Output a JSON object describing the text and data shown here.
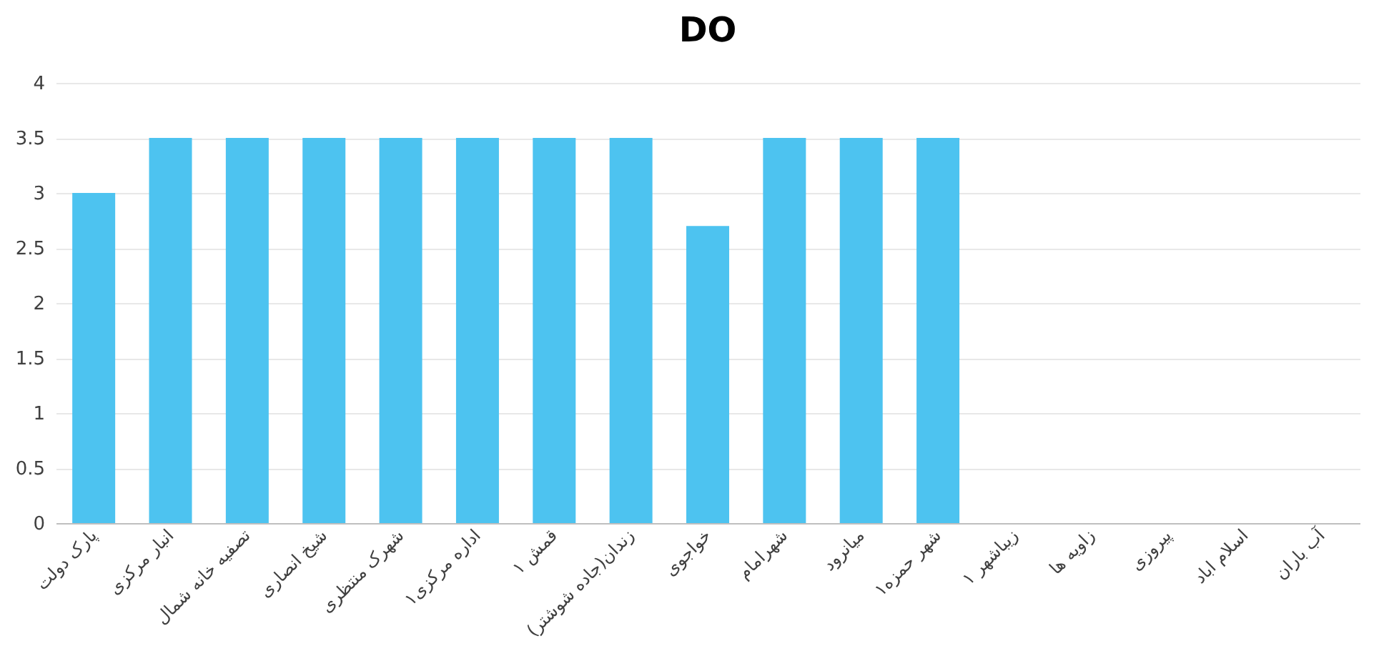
{
  "chart_data": {
    "type": "bar",
    "title": "DO",
    "categories": [
      "پارک دولت",
      "انبار مرکزی",
      "تصفیه خانه شمال",
      "شیخ انصاری",
      "شهرک منتظری",
      "اداره مرکزی۱",
      "قمش ۱",
      "زندان(جاده شوشتر)",
      "خواجوی",
      "شهرامام",
      "میانرود",
      "شهر حمزه۱",
      "زیباشهر ۱",
      "زاویه ها",
      "پیروزی",
      "اسلام اباد",
      "آب باران"
    ],
    "values": [
      3,
      3.5,
      3.5,
      3.5,
      3.5,
      3.5,
      3.5,
      3.5,
      2.7,
      3.5,
      3.5,
      3.5,
      null,
      null,
      null,
      null,
      null
    ],
    "color": "#4dc3f0",
    "ylim": [
      0,
      4
    ],
    "yticks": [
      0,
      0.5,
      1,
      1.5,
      2,
      2.5,
      3,
      3.5,
      4
    ],
    "grid": "y"
  }
}
